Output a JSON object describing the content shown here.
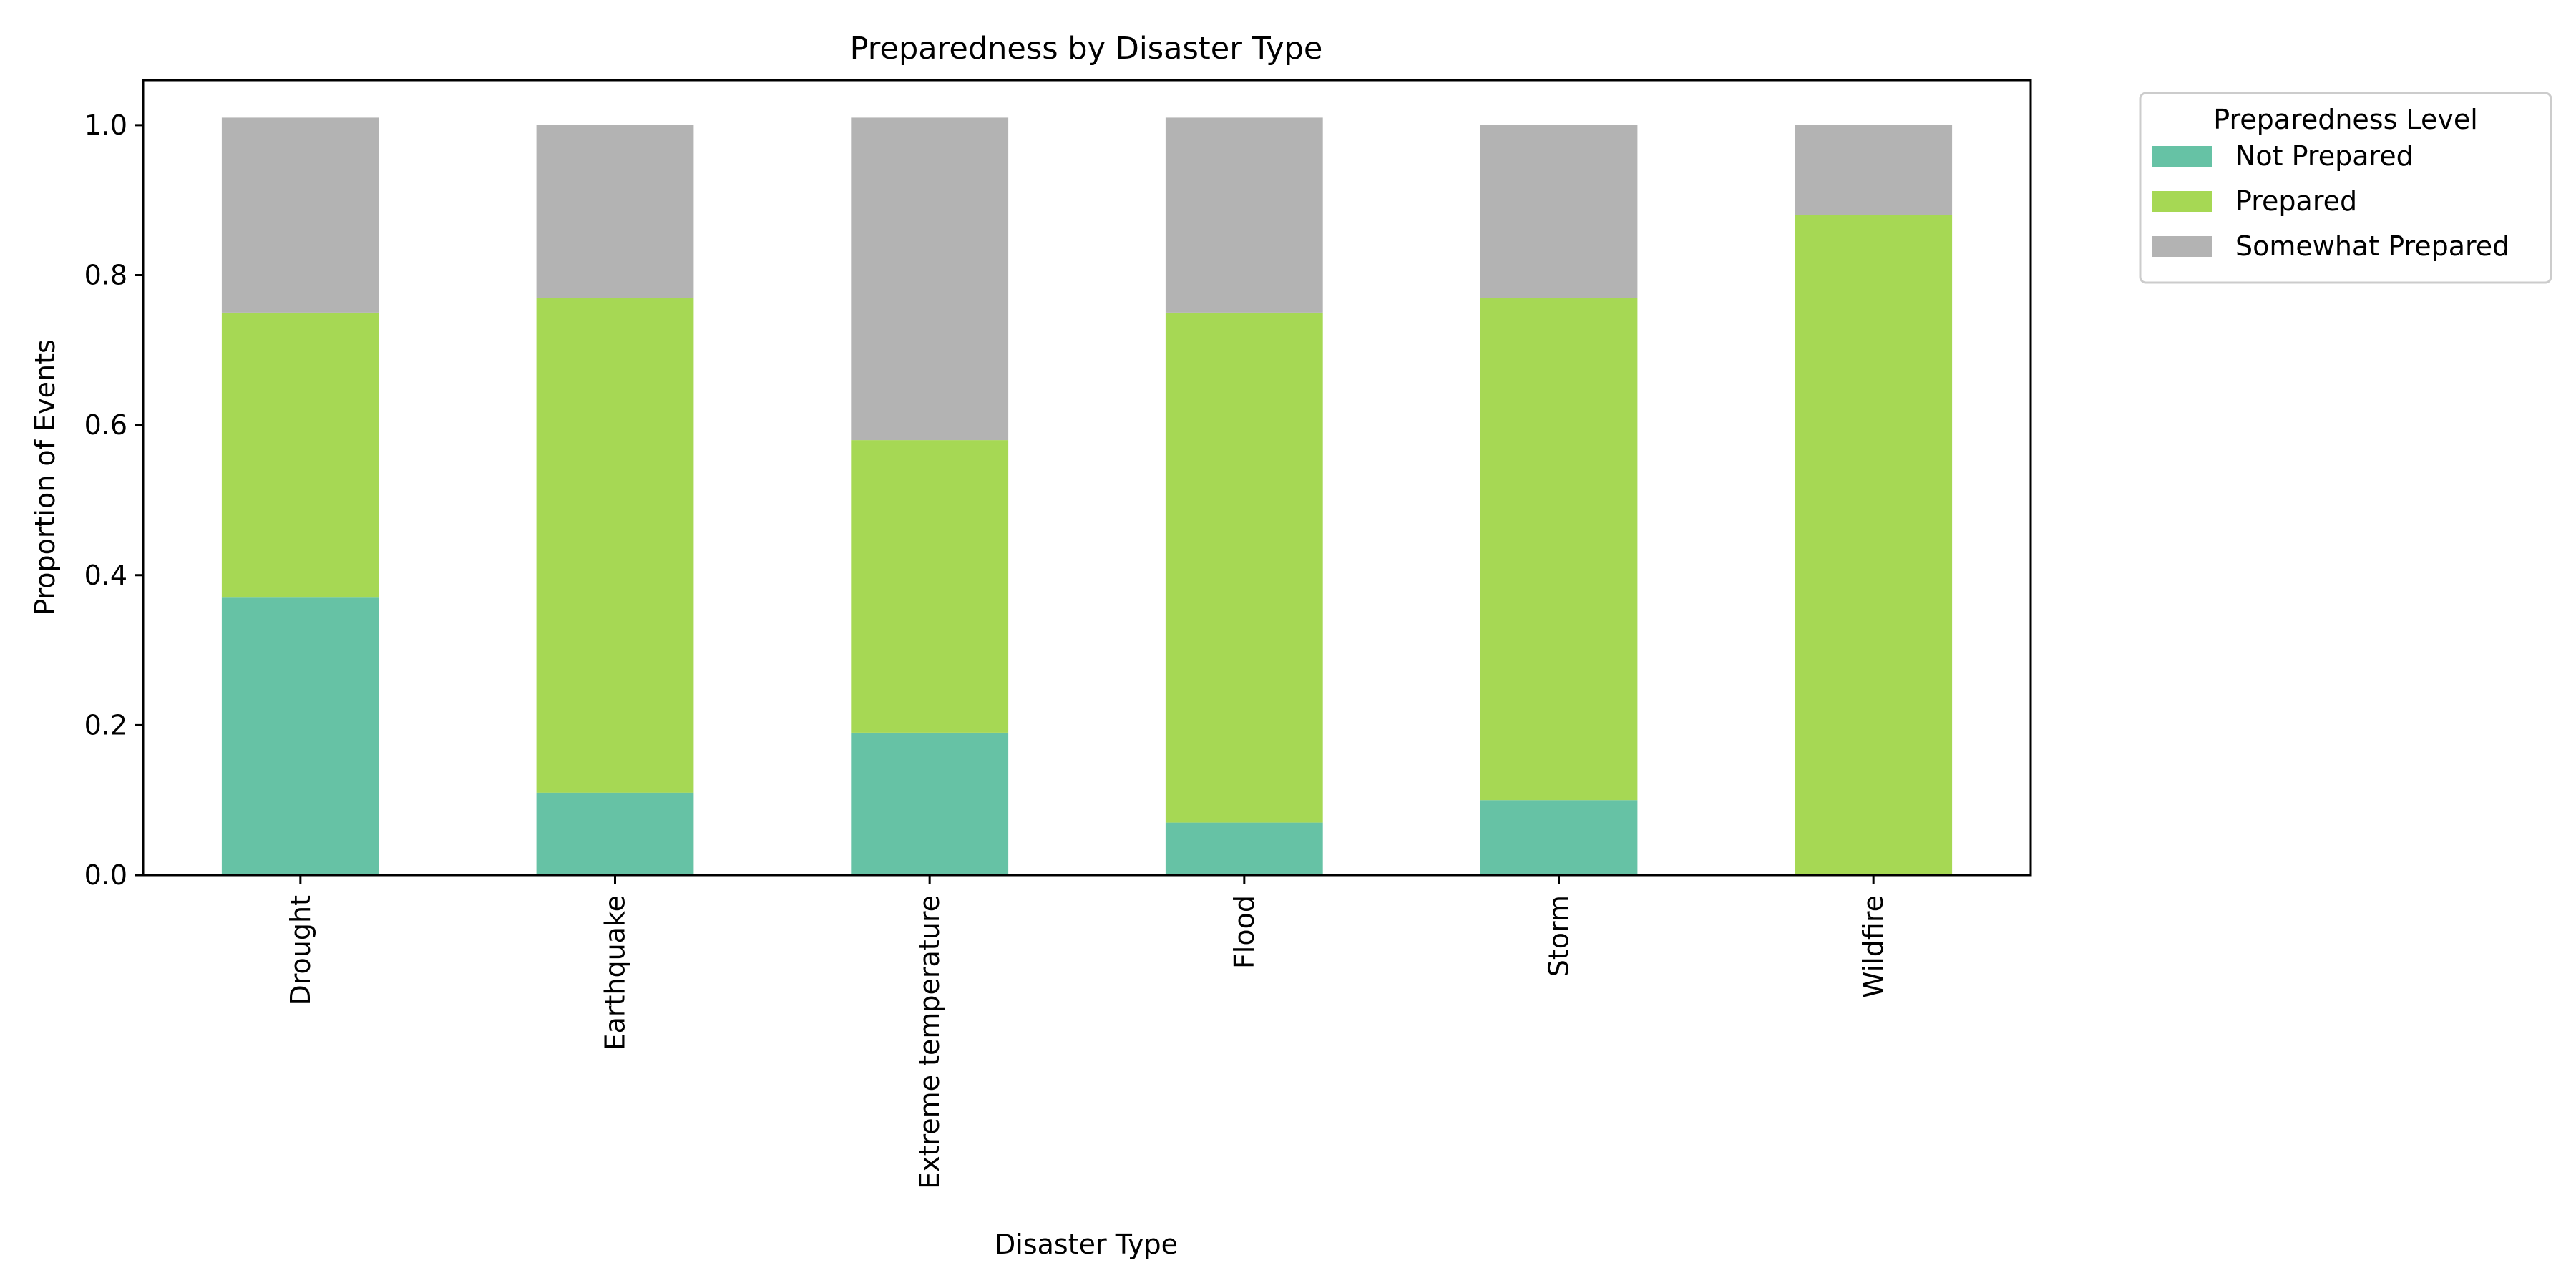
{
  "chart_data": {
    "type": "bar",
    "stacked": true,
    "title": "Preparedness by Disaster Type",
    "xlabel": "Disaster Type",
    "ylabel": "Proportion of Events",
    "ylim": [
      0,
      1.06
    ],
    "yticks": [
      "0.0",
      "0.2",
      "0.4",
      "0.6",
      "0.8",
      "1.0"
    ],
    "categories": [
      "Drought",
      "Earthquake",
      "Extreme temperature",
      "Flood",
      "Storm",
      "Wildfire"
    ],
    "grid": false,
    "legend": {
      "title": "Preparedness Level",
      "placement": "outside-top-right"
    },
    "series": [
      {
        "name": "Not Prepared",
        "color": "#66c2a5",
        "values": [
          0.37,
          0.11,
          0.19,
          0.07,
          0.1,
          0.0
        ]
      },
      {
        "name": "Prepared",
        "color": "#a6d854",
        "values": [
          0.38,
          0.66,
          0.39,
          0.68,
          0.67,
          0.88
        ]
      },
      {
        "name": "Somewhat Prepared",
        "color": "#b3b3b3",
        "values": [
          0.26,
          0.23,
          0.43,
          0.26,
          0.23,
          0.12
        ]
      }
    ]
  }
}
